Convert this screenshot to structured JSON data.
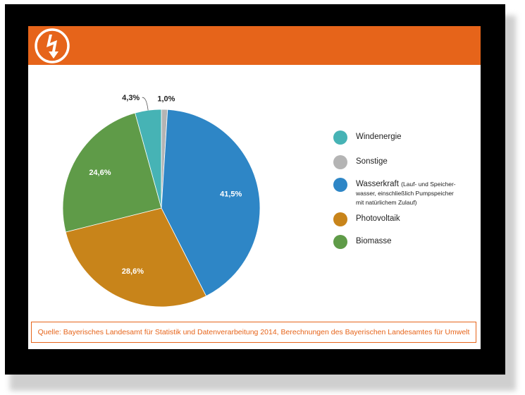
{
  "colors": {
    "accent": "#e6641a",
    "windenergie": "#46b3b5",
    "sonstige": "#b4b4b4",
    "wasserkraft": "#2e86c6",
    "photovoltaik": "#c8841a",
    "biomasse": "#5f9b48"
  },
  "header": {
    "logo_icon": "lightning-bolt-icon"
  },
  "chart_data": {
    "type": "pie",
    "unit": "%",
    "slices": [
      {
        "key": "sonstige",
        "name": "Sonstige",
        "value": 1.0,
        "label": "1,0%",
        "color": "#b4b4b4"
      },
      {
        "key": "wasserkraft",
        "name": "Wasserkraft",
        "value": 41.5,
        "label": "41,5%",
        "color": "#2e86c6"
      },
      {
        "key": "photovoltaik",
        "name": "Photovoltaik",
        "value": 28.6,
        "label": "28,6%",
        "color": "#c8841a"
      },
      {
        "key": "biomasse",
        "name": "Biomasse",
        "value": 24.6,
        "label": "24,6%",
        "color": "#5f9b48"
      },
      {
        "key": "windenergie",
        "name": "Windenergie",
        "value": 4.3,
        "label": "4,3%",
        "color": "#46b3b5"
      }
    ],
    "legend": [
      {
        "name": "Windenergie",
        "note": "",
        "color": "#46b3b5"
      },
      {
        "name": "Sonstige",
        "note": "",
        "color": "#b4b4b4"
      },
      {
        "name": "Wasserkraft",
        "note": "(Lauf- und Speicher-",
        "note2": "wasser, einschließlich Pumpspeicher",
        "note3": "mit natürlichem Zulauf)",
        "color": "#2e86c6"
      },
      {
        "name": "Photovoltaik",
        "note": "",
        "color": "#c8841a"
      },
      {
        "name": "Biomasse",
        "note": "",
        "color": "#5f9b48"
      }
    ],
    "legend_position": "right"
  },
  "footer": {
    "source": "Quelle: Bayerisches Landesamt für Statistik und Datenverarbeitung 2014, Berechnungen des Bayerischen Landesamtes für Umwelt"
  }
}
